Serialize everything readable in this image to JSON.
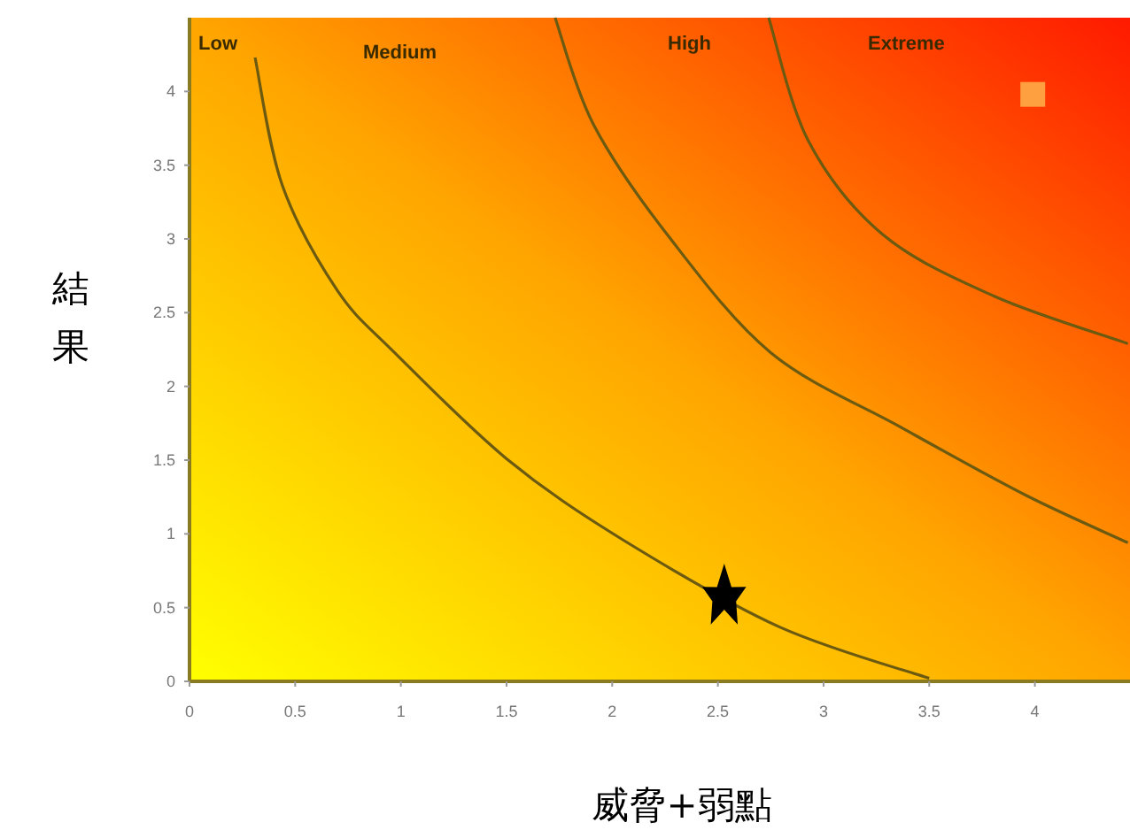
{
  "chart_data": {
    "type": "line",
    "xlabel": "威脅+弱點",
    "ylabel": "結果",
    "xlim": [
      0,
      4.45
    ],
    "ylim": [
      0,
      4.5
    ],
    "xticks": [
      0,
      0.5,
      1,
      1.5,
      2,
      2.5,
      3,
      3.5,
      4
    ],
    "yticks": [
      0,
      0.5,
      1,
      1.5,
      2,
      2.5,
      3,
      3.5,
      4
    ],
    "grid": false,
    "annotations": [
      "Low",
      "Medium",
      "High",
      "Extreme"
    ],
    "series": [
      {
        "color": "#6b5a10",
        "marker": "none",
        "x": [
          0.31,
          0.44,
          0.7,
          0.97,
          1.5,
          2.05,
          2.79,
          3.5
        ],
        "values": [
          4.23,
          3.36,
          2.65,
          2.23,
          1.51,
          0.96,
          0.37,
          0.02
        ]
      },
      {
        "color": "#6b5a10",
        "marker": "none",
        "x": [
          1.73,
          1.91,
          2.26,
          2.75,
          3.37,
          3.96,
          4.44
        ],
        "values": [
          4.5,
          3.78,
          3.03,
          2.23,
          1.72,
          1.26,
          0.94
        ]
      },
      {
        "color": "#6b5a10",
        "marker": "none",
        "x": [
          2.74,
          2.93,
          3.28,
          3.81,
          4.44
        ],
        "values": [
          4.5,
          3.66,
          3.03,
          2.61,
          2.29
        ]
      },
      {
        "type": "scatter",
        "color": "#000000",
        "marker": "star",
        "x": [
          2.53
        ],
        "values": [
          0.57
        ]
      },
      {
        "type": "scatter",
        "color": "#ffa040",
        "marker": "square",
        "x": [
          3.99
        ],
        "values": [
          3.98
        ]
      }
    ]
  }
}
